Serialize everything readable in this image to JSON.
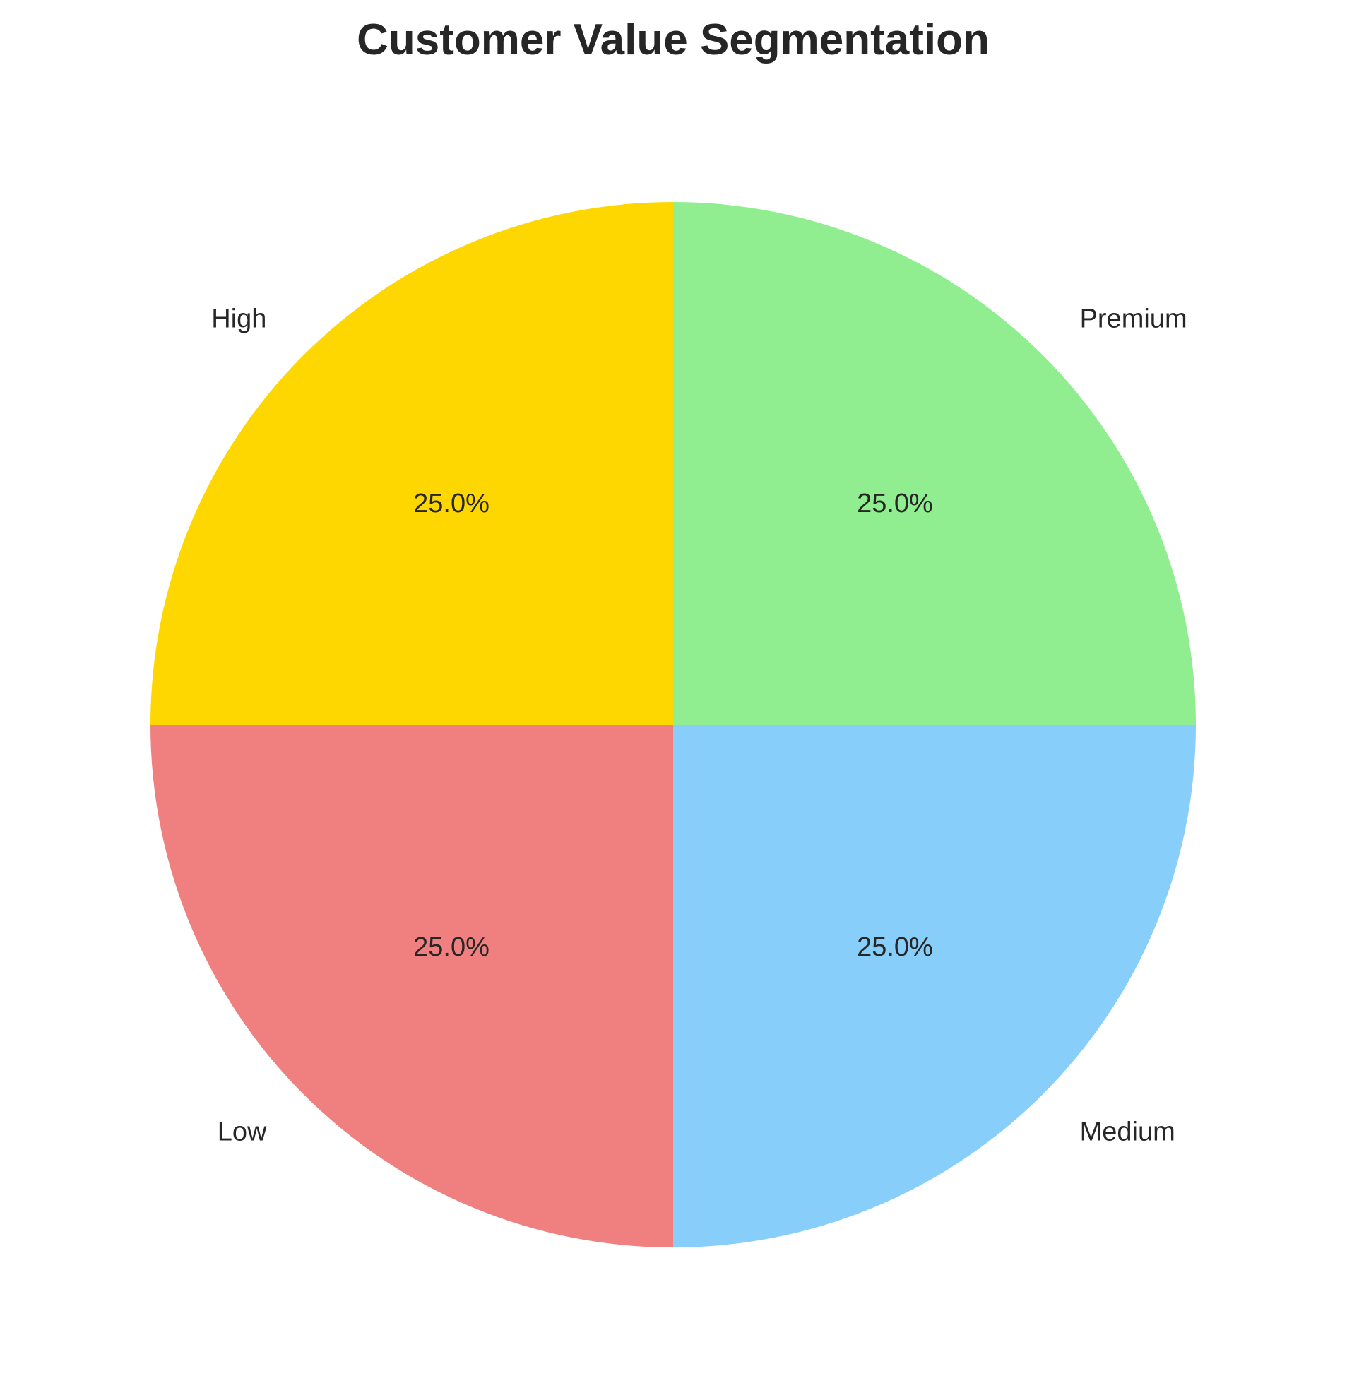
{
  "chart_data": {
    "type": "pie",
    "title": "Customer Value Segmentation",
    "categories": [
      "High",
      "Low",
      "Medium",
      "Premium"
    ],
    "values": [
      25,
      25,
      25,
      25
    ],
    "percent_labels": [
      "25.0%",
      "25.0%",
      "25.0%",
      "25.0%"
    ],
    "colors": [
      "#ffd700",
      "#f08080",
      "#87cefa",
      "#90ee90"
    ],
    "legend": "none"
  }
}
